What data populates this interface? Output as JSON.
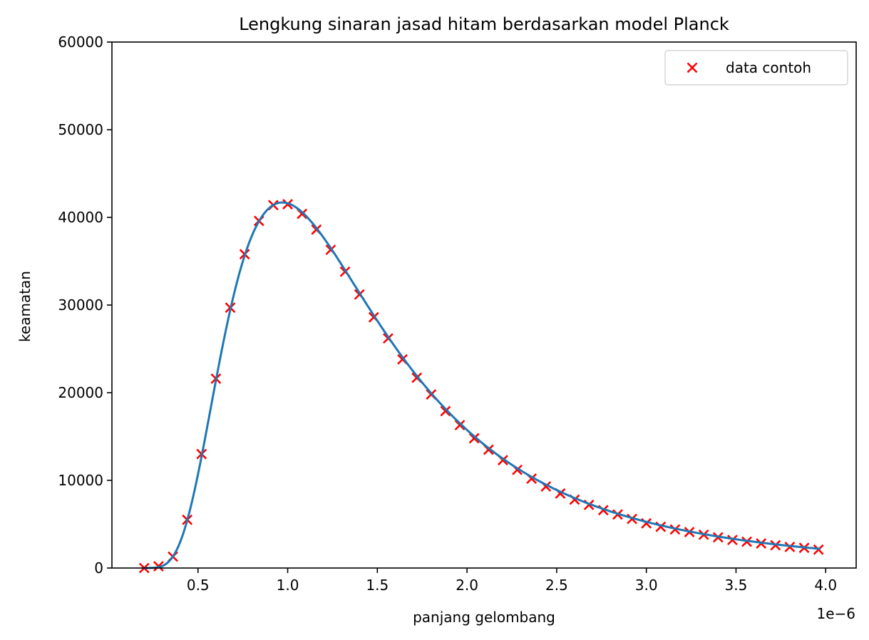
{
  "chart_data": {
    "type": "scatter",
    "title": "Lengkung sinaran jasad hitam berdasarkan model Planck",
    "xlabel": "panjang gelombang",
    "ylabel": "keamatan",
    "x_offset_label": "1e−6",
    "xlim": [
      0.02,
      4.17
    ],
    "ylim": [
      0,
      60000
    ],
    "x_ticks": [
      0.5,
      1.0,
      1.5,
      2.0,
      2.5,
      3.0,
      3.5,
      4.0
    ],
    "x_tick_labels": [
      "0.5",
      "1.0",
      "1.5",
      "2.0",
      "2.5",
      "3.0",
      "3.5",
      "4.0"
    ],
    "y_ticks": [
      0,
      10000,
      20000,
      30000,
      40000,
      50000,
      60000
    ],
    "y_tick_labels": [
      "0",
      "10000",
      "20000",
      "30000",
      "40000",
      "50000",
      "60000"
    ],
    "legend_position": "top-right",
    "grid": false,
    "series": [
      {
        "name": "data contoh",
        "kind": "scatter",
        "marker": "x",
        "color": "#ff0000",
        "x": [
          0.2,
          0.28,
          0.36,
          0.44,
          0.52,
          0.6,
          0.68,
          0.76,
          0.84,
          0.92,
          1.0,
          1.08,
          1.16,
          1.24,
          1.32,
          1.4,
          1.48,
          1.56,
          1.64,
          1.72,
          1.8,
          1.88,
          1.96,
          2.04,
          2.12,
          2.2,
          2.28,
          2.36,
          2.44,
          2.52,
          2.6,
          2.68,
          2.76,
          2.84,
          2.92,
          3.0,
          3.08,
          3.16,
          3.24,
          3.32,
          3.4,
          3.48,
          3.56,
          3.64,
          3.72,
          3.8,
          3.88,
          3.96
        ],
        "y": [
          0,
          200,
          1300,
          5500,
          13000,
          21600,
          29700,
          35800,
          39600,
          41400,
          41500,
          40400,
          38600,
          36300,
          33800,
          31200,
          28600,
          26200,
          23800,
          21700,
          19800,
          17900,
          16300,
          14800,
          13500,
          12300,
          11200,
          10200,
          9300,
          8500,
          7800,
          7200,
          6600,
          6100,
          5600,
          5100,
          4700,
          4400,
          4100,
          3800,
          3500,
          3200,
          3000,
          2800,
          2600,
          2400,
          2300,
          2100
        ]
      }
    ],
    "curve": {
      "kind": "line",
      "color": "#1f77b4",
      "model": "planck",
      "x_start": 0.2,
      "x_end": 3.97,
      "peak_x": 0.97,
      "peak_y": 41700
    }
  }
}
